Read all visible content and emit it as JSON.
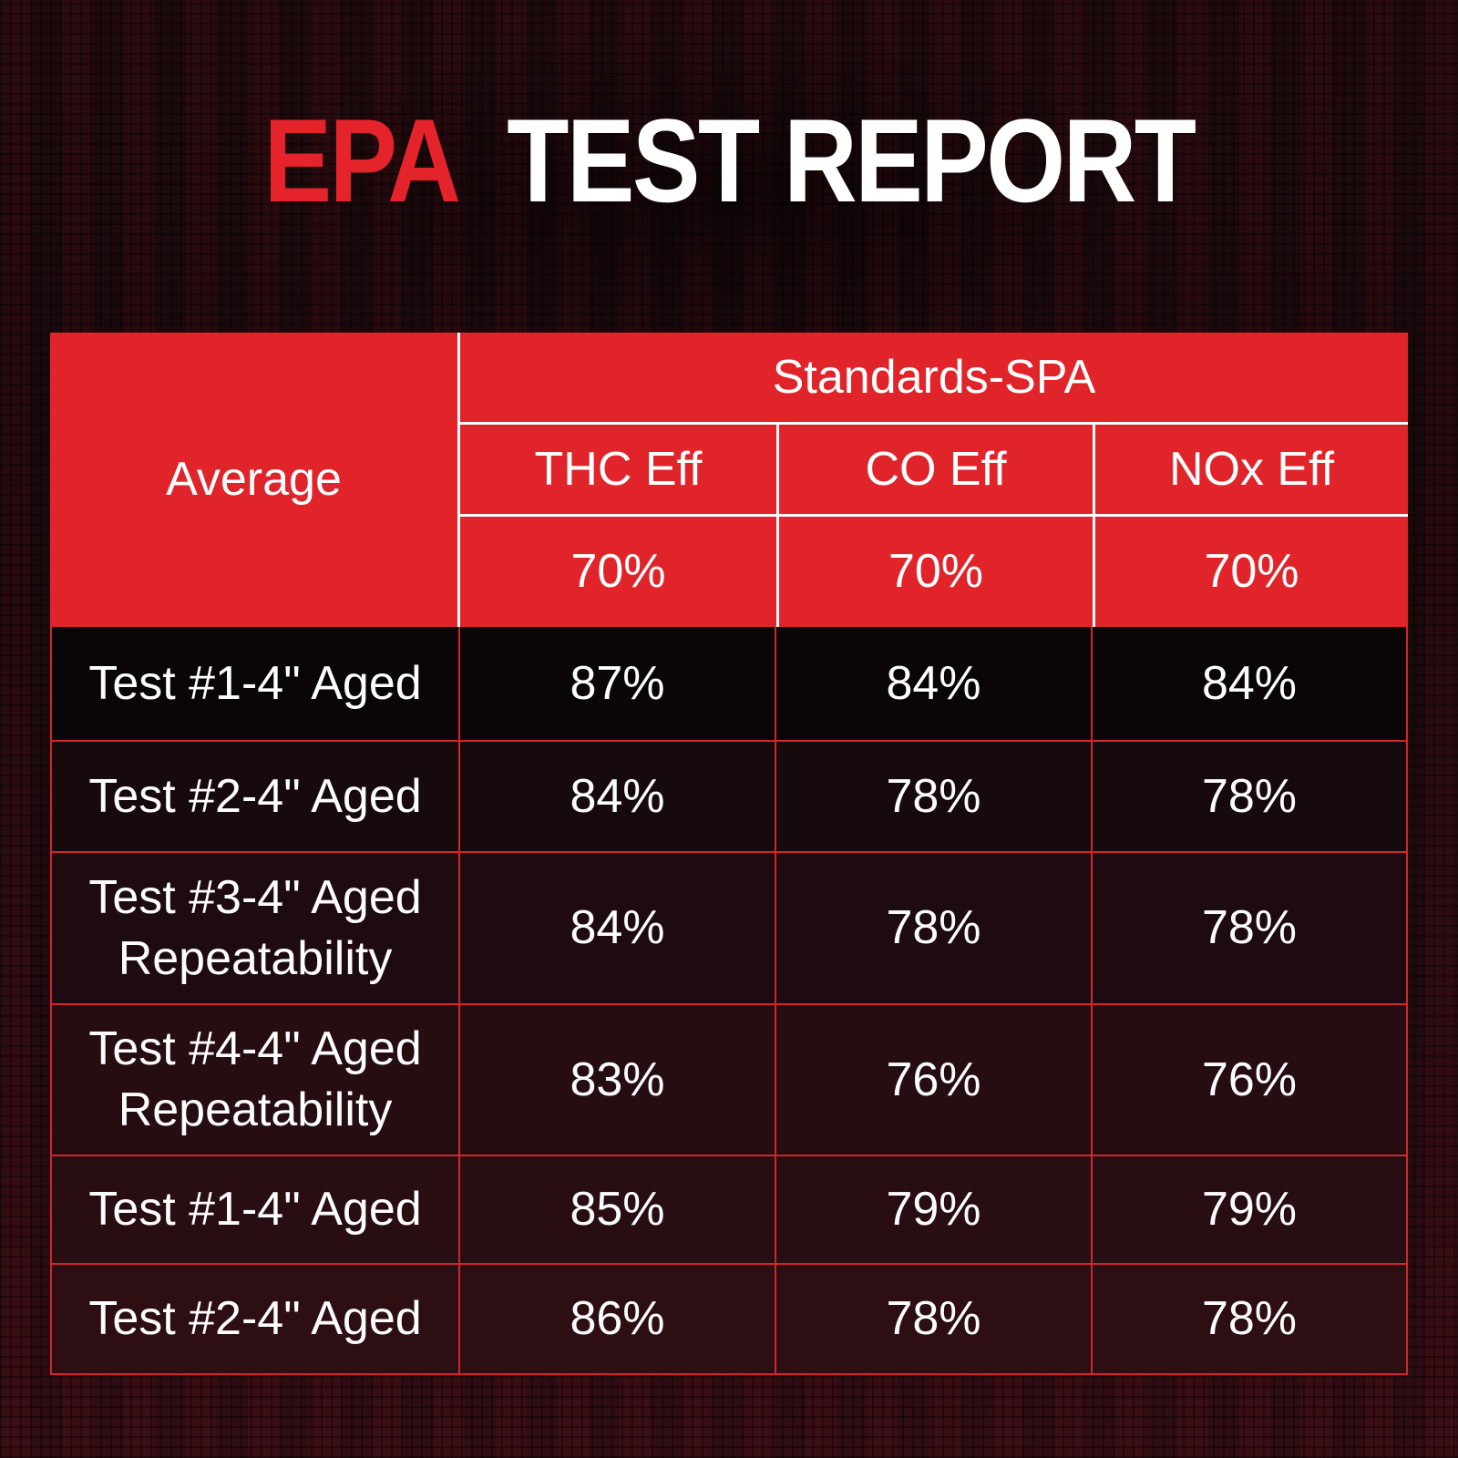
{
  "title": {
    "accent": "EPA",
    "rest": "TEST REPORT"
  },
  "colors": {
    "accent_red": "#e0242a",
    "grid_line_red": "#d2262c",
    "header_divider_white": "#ffffff",
    "text_white": "#ffffff",
    "background_dark_maroon": "#230c10"
  },
  "chart_data": {
    "type": "table",
    "title": "EPA TEST REPORT",
    "corner_label": "Average",
    "group_header": "Standards-SPA",
    "value_columns": [
      "THC Eff",
      "CO Eff",
      "NOx Eff"
    ],
    "standards_row": [
      "70%",
      "70%",
      "70%"
    ],
    "rows": [
      {
        "label": "Test #1-4\" Aged",
        "values": [
          "87%",
          "84%",
          "84%"
        ]
      },
      {
        "label": "Test #2-4\" Aged",
        "values": [
          "84%",
          "78%",
          "78%"
        ]
      },
      {
        "label": "Test #3-4\" Aged Repeatability",
        "values": [
          "84%",
          "78%",
          "78%"
        ]
      },
      {
        "label": "Test #4-4\" Aged Repeatability",
        "values": [
          "83%",
          "76%",
          "76%"
        ]
      },
      {
        "label": "Test #1-4\" Aged",
        "values": [
          "85%",
          "79%",
          "79%"
        ]
      },
      {
        "label": "Test #2-4\" Aged",
        "values": [
          "86%",
          "78%",
          "78%"
        ]
      }
    ],
    "layout": {
      "header_background": "red",
      "body_background": "dark",
      "grid": "on"
    }
  }
}
